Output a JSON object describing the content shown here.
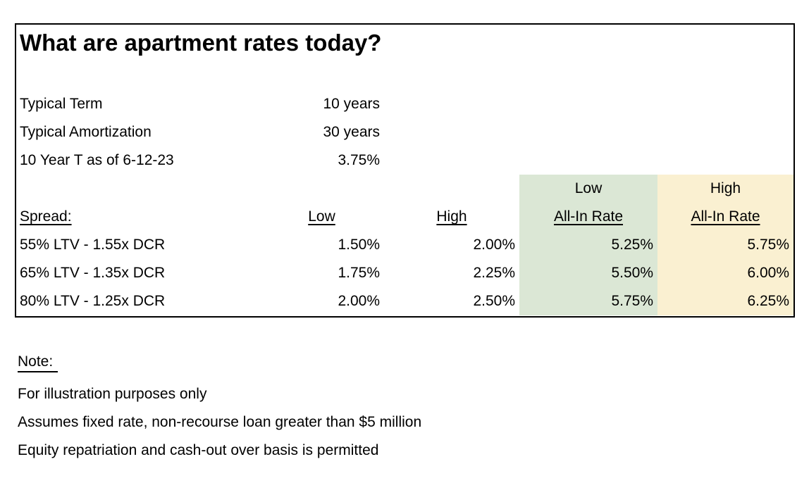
{
  "title": "What are apartment rates today?",
  "info_rows": [
    {
      "label": "Typical Term",
      "value": "10 years"
    },
    {
      "label": "Typical Amortization",
      "value": "30 years"
    },
    {
      "label": "10 Year T as of 6-12-23",
      "value": "3.75%"
    }
  ],
  "table": {
    "header_top": {
      "low_all_in": "Low",
      "high_all_in": "High"
    },
    "header": {
      "spread": "Spread:",
      "low": "Low",
      "high": "High",
      "low_all_in": "All-In Rate",
      "high_all_in": "All-In Rate"
    },
    "rows": [
      {
        "spread": "55% LTV - 1.55x DCR",
        "low": "1.50%",
        "high": "2.00%",
        "low_all_in": "5.25%",
        "high_all_in": "5.75%"
      },
      {
        "spread": "65% LTV - 1.35x DCR",
        "low": "1.75%",
        "high": "2.25%",
        "low_all_in": "5.50%",
        "high_all_in": "6.00%"
      },
      {
        "spread": "80% LTV - 1.25x DCR",
        "low": "2.00%",
        "high": "2.50%",
        "low_all_in": "5.75%",
        "high_all_in": "6.25%"
      }
    ]
  },
  "note": {
    "heading": "Note: ",
    "lines": [
      "For illustration purposes only",
      "Assumes fixed rate, non-recourse loan greater than $5 million",
      "Equity repatriation and cash-out over basis is permitted"
    ]
  },
  "colors": {
    "low_all_in_bg": "#dbe7d5",
    "high_all_in_bg": "#faf0d1",
    "border": "#000000",
    "text": "#000000"
  }
}
